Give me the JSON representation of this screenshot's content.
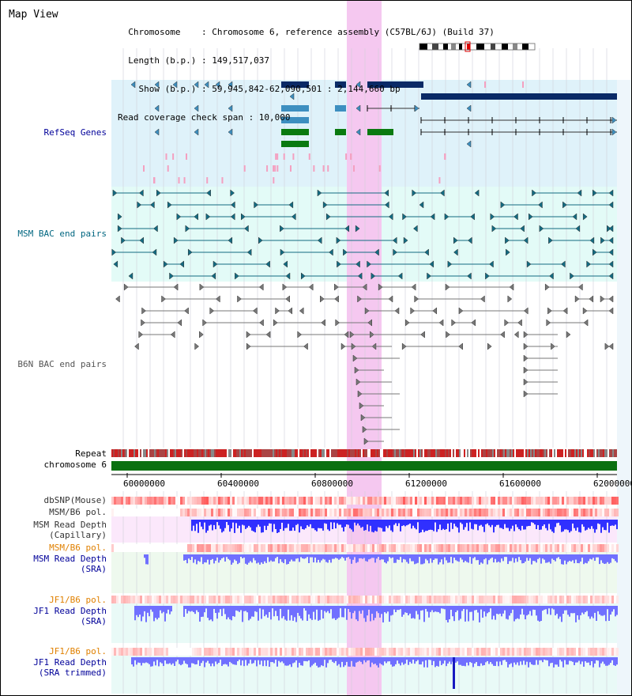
{
  "header": {
    "title": "Map View",
    "info_lines": [
      "  Chromosome    : Chromosome 6, reference assembly (C57BL/6J) (Build 37)",
      "  Length (b.p.) : 149,517,037",
      "    Show (b.p.) : 59,945,842-62,090,501 : 2,144,660 bp",
      "Read coverage check span : 10,000"
    ]
  },
  "tracks": {
    "refseq": "RefSeq Genes",
    "msm_bac": "MSM BAC end pairs",
    "b6n_bac": "B6N BAC end pairs",
    "repeat": "Repeat",
    "chromosome": "chromosome 6",
    "dbsnp": "dbSNP(Mouse)",
    "msm_b6_pol_1": "MSM/B6 pol.",
    "msm_read_depth_cap": "MSM Read Depth\n(Capillary)",
    "msm_b6_pol_2": "MSM/B6 pol.",
    "msm_read_depth_sra": "MSM Read Depth\n(SRA)",
    "jf1_b6_pol_1": "JF1/B6 pol.",
    "jf1_read_depth_sra": "JF1 Read Depth\n(SRA)",
    "jf1_b6_pol_2": "JF1/B6 pol.",
    "jf1_read_depth_trim": "JF1 Read Depth\n(SRA trimmed)"
  },
  "axis": {
    "ticks": [
      "60000000",
      "60400000",
      "60800000",
      "61200000",
      "61600000",
      "62000000"
    ]
  },
  "colors": {
    "refseq_bg": "#dff2fa",
    "msm_bac_bg": "#e3fbf7",
    "b6n_bac_bg": "#ffffff",
    "highlight": "#f5c8f0",
    "gene_dark": "#0a2a66",
    "gene_mid": "#3d8fc0",
    "gene_green": "#0a7a10",
    "bac_teal": "#136b82",
    "bac_gray": "#777777",
    "chrom_green": "#0a7010",
    "depth_blue": "#3030ff",
    "depth_light": "#7070ff",
    "label_blue": "#000099",
    "label_teal": "#006680",
    "label_gray": "#555555",
    "label_orange": "#e08000"
  }
}
